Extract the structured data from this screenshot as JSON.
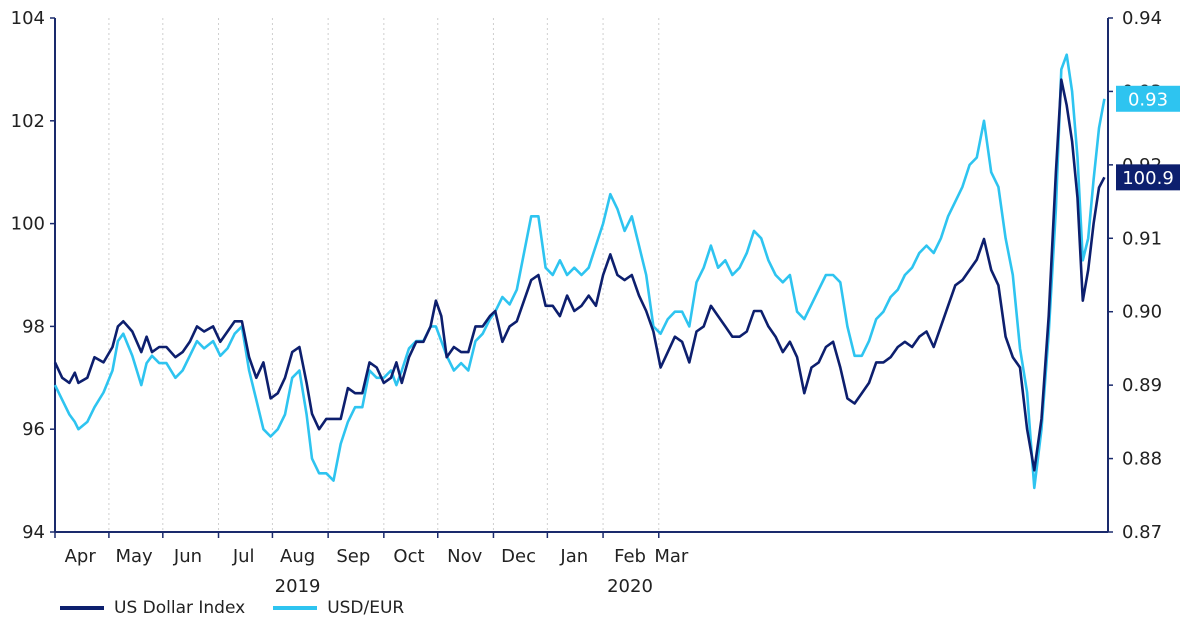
{
  "chart_data": {
    "type": "line",
    "left_axis": {
      "ylim": [
        94,
        104
      ],
      "ticks": [
        "94",
        "96",
        "98",
        "100",
        "102",
        "104"
      ]
    },
    "right_axis": {
      "ylim": [
        0.87,
        0.94
      ],
      "ticks": [
        "0.87",
        "0.88",
        "0.89",
        "0.90",
        "0.91",
        "0.92",
        "0.93",
        "0.94"
      ]
    },
    "x_axis": {
      "months": [
        "Apr",
        "May",
        "Jun",
        "Jul",
        "Aug",
        "Sep",
        "Oct",
        "Nov",
        "Dec",
        "Jan",
        "Feb",
        "Mar"
      ],
      "years": [
        {
          "label": "2019",
          "under": "Aug"
        },
        {
          "label": "2020",
          "under": "Feb"
        }
      ],
      "grid": "vertical-dotted"
    },
    "series": [
      {
        "name": "US Dollar Index",
        "axis": "left",
        "color": "#0d1f6e",
        "end_label": "100.9",
        "values": [
          [
            0,
            97.3
          ],
          [
            4,
            97.0
          ],
          [
            8,
            96.9
          ],
          [
            11,
            97.1
          ],
          [
            13,
            96.9
          ],
          [
            18,
            97.0
          ],
          [
            22,
            97.4
          ],
          [
            27,
            97.3
          ],
          [
            32,
            97.6
          ],
          [
            35,
            98.0
          ],
          [
            38,
            98.1
          ],
          [
            43,
            97.9
          ],
          [
            48,
            97.5
          ],
          [
            51,
            97.8
          ],
          [
            54,
            97.5
          ],
          [
            58,
            97.6
          ],
          [
            62,
            97.6
          ],
          [
            67,
            97.4
          ],
          [
            71,
            97.5
          ],
          [
            75,
            97.7
          ],
          [
            79,
            98.0
          ],
          [
            83,
            97.9
          ],
          [
            88,
            98.0
          ],
          [
            92,
            97.7
          ],
          [
            96,
            97.9
          ],
          [
            100,
            98.1
          ],
          [
            104,
            98.1
          ],
          [
            108,
            97.4
          ],
          [
            112,
            97.0
          ],
          [
            116,
            97.3
          ],
          [
            120,
            96.6
          ],
          [
            124,
            96.7
          ],
          [
            128,
            97.0
          ],
          [
            132,
            97.5
          ],
          [
            136,
            97.6
          ],
          [
            140,
            96.9
          ],
          [
            143,
            96.3
          ],
          [
            147,
            96.0
          ],
          [
            151,
            96.2
          ],
          [
            155,
            96.2
          ],
          [
            159,
            96.2
          ],
          [
            163,
            96.8
          ],
          [
            167,
            96.7
          ],
          [
            171,
            96.7
          ],
          [
            175,
            97.3
          ],
          [
            179,
            97.2
          ],
          [
            183,
            96.9
          ],
          [
            187,
            97.0
          ],
          [
            190,
            97.3
          ],
          [
            193,
            96.9
          ],
          [
            197,
            97.4
          ],
          [
            201,
            97.7
          ],
          [
            205,
            97.7
          ],
          [
            209,
            98.0
          ],
          [
            212,
            98.5
          ],
          [
            215,
            98.2
          ],
          [
            218,
            97.4
          ],
          [
            222,
            97.6
          ],
          [
            226,
            97.5
          ],
          [
            230,
            97.5
          ],
          [
            234,
            98.0
          ],
          [
            238,
            98.0
          ],
          [
            242,
            98.2
          ],
          [
            245,
            98.3
          ],
          [
            249,
            97.7
          ],
          [
            253,
            98.0
          ],
          [
            257,
            98.1
          ],
          [
            261,
            98.5
          ],
          [
            265,
            98.9
          ],
          [
            269,
            99.0
          ],
          [
            273,
            98.4
          ],
          [
            277,
            98.4
          ],
          [
            281,
            98.2
          ],
          [
            285,
            98.6
          ],
          [
            289,
            98.3
          ],
          [
            293,
            98.4
          ],
          [
            297,
            98.6
          ],
          [
            301,
            98.4
          ],
          [
            305,
            99.0
          ],
          [
            309,
            99.4
          ],
          [
            313,
            99.0
          ],
          [
            317,
            98.9
          ],
          [
            321,
            99.0
          ],
          [
            325,
            98.6
          ],
          [
            329,
            98.3
          ],
          [
            333,
            97.9
          ],
          [
            337,
            97.2
          ],
          [
            341,
            97.5
          ],
          [
            345,
            97.8
          ],
          [
            349,
            97.7
          ],
          [
            353,
            97.3
          ],
          [
            357,
            97.9
          ],
          [
            361,
            98.0
          ],
          [
            365,
            98.4
          ],
          [
            369,
            98.2
          ],
          [
            373,
            98.0
          ],
          [
            377,
            97.8
          ],
          [
            381,
            97.8
          ],
          [
            385,
            97.9
          ],
          [
            389,
            98.3
          ],
          [
            393,
            98.3
          ],
          [
            397,
            98.0
          ],
          [
            401,
            97.8
          ],
          [
            405,
            97.5
          ],
          [
            409,
            97.7
          ],
          [
            413,
            97.4
          ],
          [
            417,
            96.7
          ],
          [
            421,
            97.2
          ],
          [
            425,
            97.3
          ],
          [
            429,
            97.6
          ],
          [
            433,
            97.7
          ],
          [
            437,
            97.2
          ],
          [
            441,
            96.6
          ],
          [
            445,
            96.5
          ],
          [
            449,
            96.7
          ],
          [
            453,
            96.9
          ],
          [
            457,
            97.3
          ],
          [
            461,
            97.3
          ],
          [
            465,
            97.4
          ],
          [
            469,
            97.6
          ],
          [
            473,
            97.7
          ],
          [
            477,
            97.6
          ],
          [
            481,
            97.8
          ],
          [
            485,
            97.9
          ],
          [
            489,
            97.6
          ],
          [
            493,
            98.0
          ],
          [
            497,
            98.4
          ],
          [
            501,
            98.8
          ],
          [
            505,
            98.9
          ],
          [
            509,
            99.1
          ],
          [
            513,
            99.3
          ],
          [
            517,
            99.7
          ],
          [
            521,
            99.1
          ],
          [
            525,
            98.8
          ],
          [
            529,
            97.8
          ],
          [
            533,
            97.4
          ],
          [
            537,
            97.2
          ],
          [
            541,
            96.0
          ],
          [
            545,
            95.2
          ],
          [
            549,
            96.2
          ],
          [
            553,
            98.2
          ],
          [
            557,
            101.0
          ],
          [
            560,
            102.8
          ],
          [
            563,
            102.3
          ],
          [
            566,
            101.6
          ],
          [
            569,
            100.5
          ],
          [
            572,
            98.5
          ],
          [
            575,
            99.1
          ],
          [
            578,
            100.0
          ],
          [
            581,
            100.7
          ],
          [
            584,
            100.9
          ]
        ]
      },
      {
        "name": "USD/EUR",
        "axis": "right",
        "color": "#2ec4f0",
        "end_label": "0.93",
        "values": [
          [
            0,
            0.89
          ],
          [
            4,
            0.888
          ],
          [
            8,
            0.886
          ],
          [
            11,
            0.885
          ],
          [
            13,
            0.884
          ],
          [
            18,
            0.885
          ],
          [
            22,
            0.887
          ],
          [
            27,
            0.889
          ],
          [
            32,
            0.892
          ],
          [
            35,
            0.896
          ],
          [
            38,
            0.897
          ],
          [
            43,
            0.894
          ],
          [
            48,
            0.89
          ],
          [
            51,
            0.893
          ],
          [
            54,
            0.894
          ],
          [
            58,
            0.893
          ],
          [
            62,
            0.893
          ],
          [
            67,
            0.891
          ],
          [
            71,
            0.892
          ],
          [
            75,
            0.894
          ],
          [
            79,
            0.896
          ],
          [
            83,
            0.895
          ],
          [
            88,
            0.896
          ],
          [
            92,
            0.894
          ],
          [
            96,
            0.895
          ],
          [
            100,
            0.897
          ],
          [
            104,
            0.898
          ],
          [
            108,
            0.892
          ],
          [
            112,
            0.888
          ],
          [
            116,
            0.884
          ],
          [
            120,
            0.883
          ],
          [
            124,
            0.884
          ],
          [
            128,
            0.886
          ],
          [
            132,
            0.891
          ],
          [
            136,
            0.892
          ],
          [
            140,
            0.886
          ],
          [
            143,
            0.88
          ],
          [
            147,
            0.878
          ],
          [
            151,
            0.878
          ],
          [
            155,
            0.877
          ],
          [
            159,
            0.882
          ],
          [
            163,
            0.885
          ],
          [
            167,
            0.887
          ],
          [
            171,
            0.887
          ],
          [
            175,
            0.892
          ],
          [
            179,
            0.891
          ],
          [
            183,
            0.891
          ],
          [
            187,
            0.892
          ],
          [
            190,
            0.89
          ],
          [
            193,
            0.892
          ],
          [
            197,
            0.895
          ],
          [
            201,
            0.896
          ],
          [
            205,
            0.896
          ],
          [
            209,
            0.898
          ],
          [
            212,
            0.898
          ],
          [
            215,
            0.896
          ],
          [
            218,
            0.894
          ],
          [
            222,
            0.892
          ],
          [
            226,
            0.893
          ],
          [
            230,
            0.892
          ],
          [
            234,
            0.896
          ],
          [
            238,
            0.897
          ],
          [
            242,
            0.899
          ],
          [
            245,
            0.9
          ],
          [
            249,
            0.902
          ],
          [
            253,
            0.901
          ],
          [
            257,
            0.903
          ],
          [
            261,
            0.908
          ],
          [
            265,
            0.913
          ],
          [
            269,
            0.913
          ],
          [
            273,
            0.906
          ],
          [
            277,
            0.905
          ],
          [
            281,
            0.907
          ],
          [
            285,
            0.905
          ],
          [
            289,
            0.906
          ],
          [
            293,
            0.905
          ],
          [
            297,
            0.906
          ],
          [
            301,
            0.909
          ],
          [
            305,
            0.912
          ],
          [
            309,
            0.916
          ],
          [
            313,
            0.914
          ],
          [
            317,
            0.911
          ],
          [
            321,
            0.913
          ],
          [
            325,
            0.909
          ],
          [
            329,
            0.905
          ],
          [
            333,
            0.898
          ],
          [
            337,
            0.897
          ],
          [
            341,
            0.899
          ],
          [
            345,
            0.9
          ],
          [
            349,
            0.9
          ],
          [
            353,
            0.898
          ],
          [
            357,
            0.904
          ],
          [
            361,
            0.906
          ],
          [
            365,
            0.909
          ],
          [
            369,
            0.906
          ],
          [
            373,
            0.907
          ],
          [
            377,
            0.905
          ],
          [
            381,
            0.906
          ],
          [
            385,
            0.908
          ],
          [
            389,
            0.911
          ],
          [
            393,
            0.91
          ],
          [
            397,
            0.907
          ],
          [
            401,
            0.905
          ],
          [
            405,
            0.904
          ],
          [
            409,
            0.905
          ],
          [
            413,
            0.9
          ],
          [
            417,
            0.899
          ],
          [
            421,
            0.901
          ],
          [
            425,
            0.903
          ],
          [
            429,
            0.905
          ],
          [
            433,
            0.905
          ],
          [
            437,
            0.904
          ],
          [
            441,
            0.898
          ],
          [
            445,
            0.894
          ],
          [
            449,
            0.894
          ],
          [
            453,
            0.896
          ],
          [
            457,
            0.899
          ],
          [
            461,
            0.9
          ],
          [
            465,
            0.902
          ],
          [
            469,
            0.903
          ],
          [
            473,
            0.905
          ],
          [
            477,
            0.906
          ],
          [
            481,
            0.908
          ],
          [
            485,
            0.909
          ],
          [
            489,
            0.908
          ],
          [
            493,
            0.91
          ],
          [
            497,
            0.913
          ],
          [
            501,
            0.915
          ],
          [
            505,
            0.917
          ],
          [
            509,
            0.92
          ],
          [
            513,
            0.921
          ],
          [
            517,
            0.926
          ],
          [
            521,
            0.919
          ],
          [
            525,
            0.917
          ],
          [
            529,
            0.91
          ],
          [
            533,
            0.905
          ],
          [
            537,
            0.895
          ],
          [
            541,
            0.889
          ],
          [
            545,
            0.876
          ],
          [
            549,
            0.884
          ],
          [
            553,
            0.897
          ],
          [
            557,
            0.914
          ],
          [
            560,
            0.933
          ],
          [
            563,
            0.935
          ],
          [
            566,
            0.93
          ],
          [
            569,
            0.921
          ],
          [
            572,
            0.907
          ],
          [
            575,
            0.91
          ],
          [
            578,
            0.918
          ],
          [
            581,
            0.925
          ],
          [
            584,
            0.929
          ]
        ]
      }
    ]
  }
}
